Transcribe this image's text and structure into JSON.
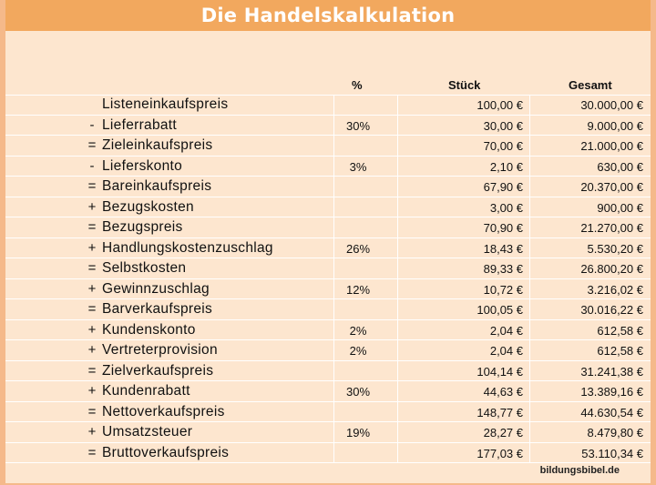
{
  "title": "Die Handelskalkulation",
  "headers": {
    "percent": "%",
    "piece": "Stück",
    "total": "Gesamt"
  },
  "rows": [
    {
      "op": "",
      "label": "Listeneinkaufspreis",
      "pct": "",
      "stueck": "100,00 €",
      "gesamt": "30.000,00 €"
    },
    {
      "op": "-",
      "label": "Lieferrabatt",
      "pct": "30%",
      "stueck": "30,00 €",
      "gesamt": "9.000,00 €"
    },
    {
      "op": "=",
      "label": "Zieleinkaufspreis",
      "pct": "",
      "stueck": "70,00 €",
      "gesamt": "21.000,00 €"
    },
    {
      "op": "-",
      "label": "Lieferskonto",
      "pct": "3%",
      "stueck": "2,10 €",
      "gesamt": "630,00 €"
    },
    {
      "op": "=",
      "label": "Bareinkaufspreis",
      "pct": "",
      "stueck": "67,90 €",
      "gesamt": "20.370,00 €"
    },
    {
      "op": "+",
      "label": "Bezugskosten",
      "pct": "",
      "stueck": "3,00 €",
      "gesamt": "900,00 €"
    },
    {
      "op": "=",
      "label": "Bezugspreis",
      "pct": "",
      "stueck": "70,90 €",
      "gesamt": "21.270,00 €"
    },
    {
      "op": "+",
      "label": "Handlungskostenzuschlag",
      "pct": "26%",
      "stueck": "18,43 €",
      "gesamt": "5.530,20 €"
    },
    {
      "op": "=",
      "label": "Selbstkosten",
      "pct": "",
      "stueck": "89,33 €",
      "gesamt": "26.800,20 €"
    },
    {
      "op": "+",
      "label": "Gewinnzuschlag",
      "pct": "12%",
      "stueck": "10,72 €",
      "gesamt": "3.216,02 €"
    },
    {
      "op": "=",
      "label": "Barverkaufspreis",
      "pct": "",
      "stueck": "100,05 €",
      "gesamt": "30.016,22 €"
    },
    {
      "op": "+",
      "label": "Kundenskonto",
      "pct": "2%",
      "stueck": "2,04 €",
      "gesamt": "612,58 €"
    },
    {
      "op": "+",
      "label": "Vertreterprovision",
      "pct": "2%",
      "stueck": "2,04 €",
      "gesamt": "612,58 €"
    },
    {
      "op": "=",
      "label": "Zielverkaufspreis",
      "pct": "",
      "stueck": "104,14 €",
      "gesamt": "31.241,38 €"
    },
    {
      "op": "+",
      "label": "Kundenrabatt",
      "pct": "30%",
      "stueck": "44,63 €",
      "gesamt": "13.389,16 €"
    },
    {
      "op": "=",
      "label": "Nettoverkaufspreis",
      "pct": "",
      "stueck": "148,77 €",
      "gesamt": "44.630,54 €"
    },
    {
      "op": "+",
      "label": "Umsatzsteuer",
      "pct": "19%",
      "stueck": "28,27 €",
      "gesamt": "8.479,80 €"
    },
    {
      "op": "=",
      "label": "Bruttoverkaufspreis",
      "pct": "",
      "stueck": "177,03 €",
      "gesamt": "53.110,34 €"
    }
  ],
  "footer": "bildungsbibel.de"
}
